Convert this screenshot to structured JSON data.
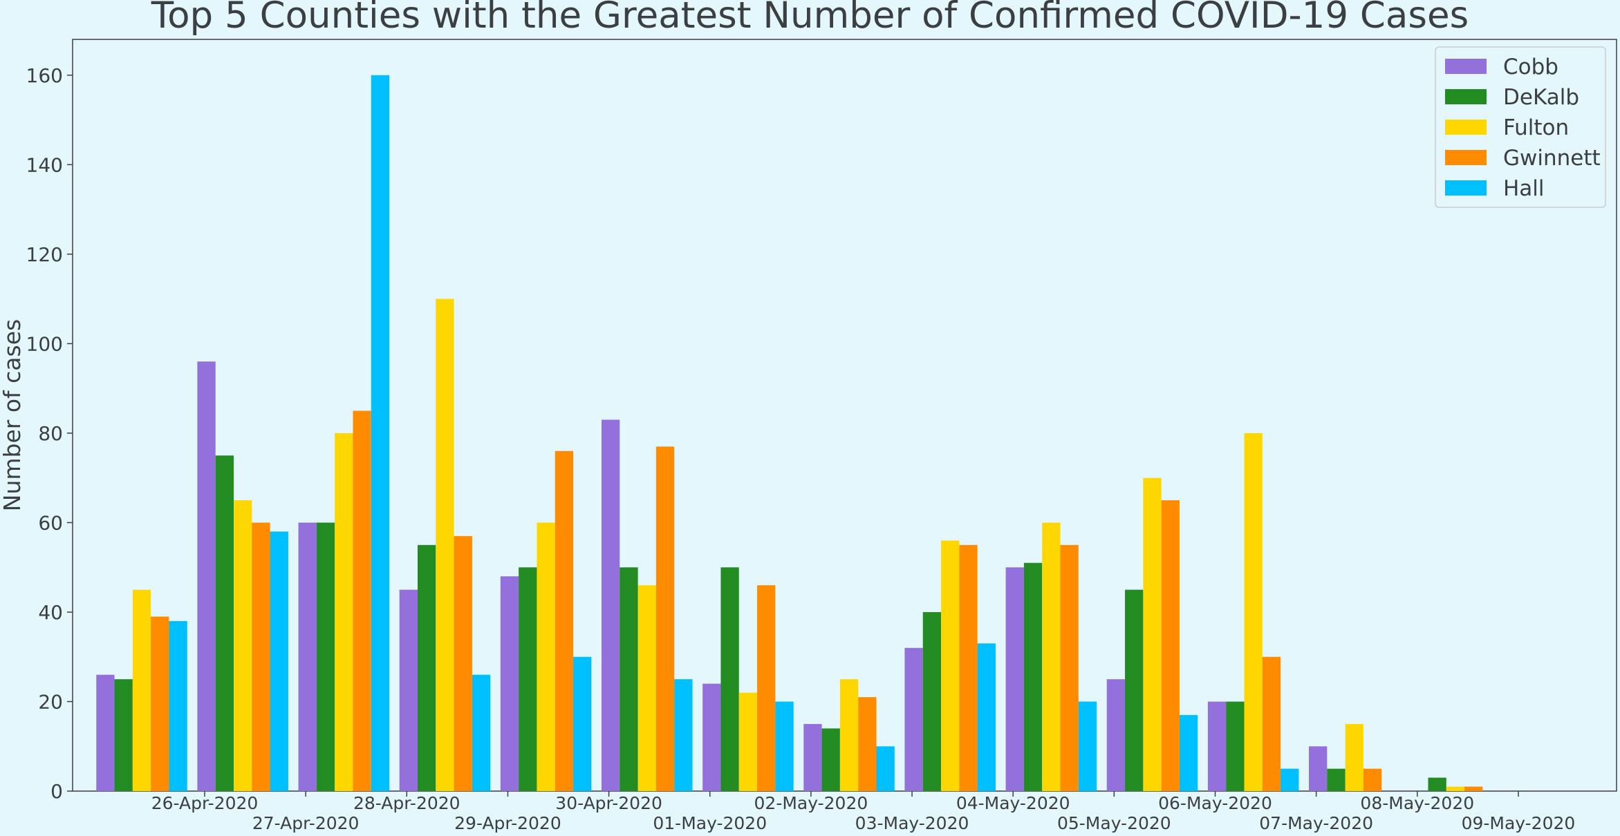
{
  "chart_data": {
    "type": "bar",
    "title": "Top 5 Counties with the Greatest Number of Confirmed COVID-19 Cases",
    "xlabel": "",
    "ylabel": "Number of cases",
    "ylim": [
      0,
      168
    ],
    "yticks": [
      0,
      20,
      40,
      60,
      80,
      100,
      120,
      140,
      160
    ],
    "grid": false,
    "legend_position": "top-right",
    "categories": [
      "26-Apr-2020",
      "27-Apr-2020",
      "28-Apr-2020",
      "29-Apr-2020",
      "30-Apr-2020",
      "01-May-2020",
      "02-May-2020",
      "03-May-2020",
      "04-May-2020",
      "05-May-2020",
      "06-May-2020",
      "07-May-2020",
      "08-May-2020",
      "09-May-2020"
    ],
    "series": [
      {
        "name": "Cobb",
        "color": "#9370db",
        "values": [
          26,
          96,
          60,
          45,
          48,
          83,
          24,
          15,
          32,
          50,
          25,
          20,
          10,
          0
        ]
      },
      {
        "name": "DeKalb",
        "color": "#228b22",
        "values": [
          25,
          75,
          60,
          55,
          50,
          50,
          50,
          14,
          40,
          51,
          45,
          20,
          5,
          3
        ]
      },
      {
        "name": "Fulton",
        "color": "#ffd700",
        "values": [
          45,
          65,
          80,
          110,
          60,
          46,
          22,
          25,
          56,
          60,
          70,
          80,
          15,
          1
        ]
      },
      {
        "name": "Gwinnett",
        "color": "#ff8c00",
        "values": [
          39,
          60,
          85,
          57,
          76,
          77,
          46,
          21,
          55,
          55,
          65,
          30,
          5,
          1
        ]
      },
      {
        "name": "Hall",
        "color": "#00bfff",
        "values": [
          38,
          58,
          160,
          26,
          30,
          25,
          20,
          10,
          33,
          20,
          17,
          5,
          0,
          0
        ]
      }
    ]
  }
}
